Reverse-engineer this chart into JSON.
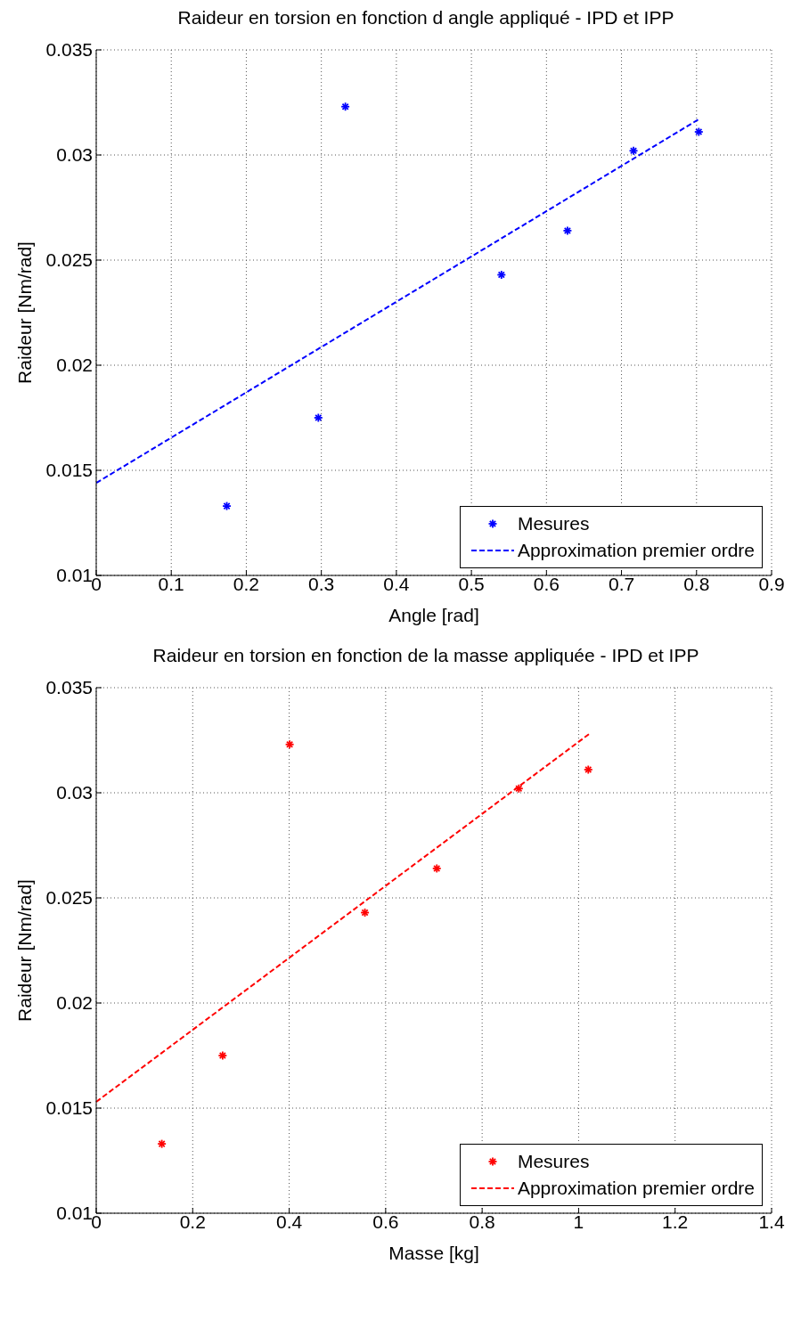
{
  "chart_data": [
    {
      "type": "scatter",
      "title": "Raideur en torsion en fonction d angle appliqué - IPD et IPP",
      "xlabel": "Angle [rad]",
      "ylabel": "Raideur [Nm/rad]",
      "xlim": [
        0,
        0.9
      ],
      "xticks": [
        0,
        0.1,
        0.2,
        0.3,
        0.4,
        0.5,
        0.6,
        0.7,
        0.8,
        0.9
      ],
      "ylim": [
        0.01,
        0.035
      ],
      "yticks": [
        0.01,
        0.015,
        0.02,
        0.025,
        0.03,
        0.035
      ],
      "grid": true,
      "legend": "bottom right",
      "series": [
        {
          "name": "Mesures",
          "marker": "cross",
          "color": "#0000ff",
          "x": [
            0.174,
            0.296,
            0.332,
            0.54,
            0.628,
            0.716,
            0.803
          ],
          "values": [
            0.0133,
            0.0175,
            0.0323,
            0.0243,
            0.0264,
            0.0302,
            0.0311
          ]
        },
        {
          "name": "Approximation premier ordre",
          "type": "line",
          "line_style": "dashed",
          "color": "#0000ff",
          "x": [
            0,
            0.803
          ],
          "values": [
            0.0144,
            0.0317
          ]
        }
      ]
    },
    {
      "type": "scatter",
      "title": "Raideur en torsion en fonction de la masse appliquée - IPD et IPP",
      "xlabel": "Masse [kg]",
      "ylabel": "Raideur [Nm/rad]",
      "xlim": [
        0,
        1.4
      ],
      "xticks": [
        0,
        0.2,
        0.4,
        0.6,
        0.8,
        1,
        1.2,
        1.4
      ],
      "ylim": [
        0.01,
        0.035
      ],
      "yticks": [
        0.01,
        0.015,
        0.02,
        0.025,
        0.03,
        0.035
      ],
      "grid": true,
      "legend": "bottom right",
      "series": [
        {
          "name": "Mesures",
          "marker": "cross",
          "color": "#ff0000",
          "x": [
            0.136,
            0.262,
            0.401,
            0.557,
            0.706,
            0.876,
            1.02
          ],
          "values": [
            0.0133,
            0.0175,
            0.0323,
            0.0243,
            0.0264,
            0.0302,
            0.0311
          ]
        },
        {
          "name": "Approximation premier ordre",
          "type": "line",
          "line_style": "dashed",
          "color": "#ff0000",
          "x": [
            0,
            1.022
          ],
          "values": [
            0.0153,
            0.0328
          ]
        }
      ]
    }
  ]
}
